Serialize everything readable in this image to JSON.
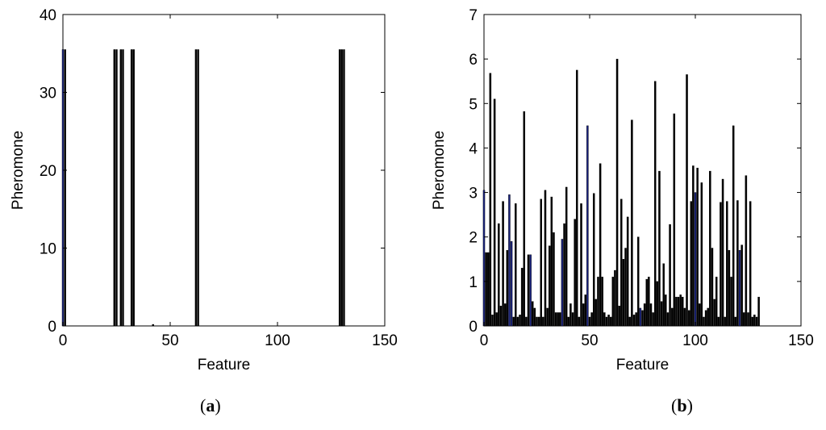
{
  "chart_data": [
    {
      "id": "a",
      "type": "bar",
      "xlabel": "Feature",
      "ylabel": "Pheromone",
      "xlim": [
        0,
        150
      ],
      "ylim": [
        0,
        40
      ],
      "xticks": [
        0,
        50,
        100,
        150
      ],
      "yticks": [
        0,
        10,
        20,
        30,
        40
      ],
      "caption": "a",
      "bars": [
        {
          "x": 0,
          "y": 35.5,
          "color": "#1a237e"
        },
        {
          "x": 1,
          "y": 35.5,
          "color": "#000000"
        },
        {
          "x": 24,
          "y": 35.5,
          "color": "#000000"
        },
        {
          "x": 25,
          "y": 35.5,
          "color": "#000000"
        },
        {
          "x": 27,
          "y": 35.5,
          "color": "#000000"
        },
        {
          "x": 28,
          "y": 35.5,
          "color": "#000000"
        },
        {
          "x": 32,
          "y": 35.5,
          "color": "#000000"
        },
        {
          "x": 33,
          "y": 35.5,
          "color": "#000000"
        },
        {
          "x": 42,
          "y": 0.2,
          "color": "#000000"
        },
        {
          "x": 62,
          "y": 35.5,
          "color": "#000000"
        },
        {
          "x": 63,
          "y": 35.5,
          "color": "#000000"
        },
        {
          "x": 129,
          "y": 35.5,
          "color": "#000000"
        },
        {
          "x": 130,
          "y": 35.5,
          "color": "#000000"
        },
        {
          "x": 131,
          "y": 35.5,
          "color": "#000000"
        }
      ]
    },
    {
      "id": "b",
      "type": "bar",
      "xlabel": "Feature",
      "ylabel": "Pheromone",
      "xlim": [
        0,
        150
      ],
      "ylim": [
        0,
        7
      ],
      "xticks": [
        0,
        50,
        100,
        150
      ],
      "yticks": [
        0,
        1,
        2,
        3,
        4,
        5,
        6,
        7
      ],
      "caption": "b",
      "values": [
        3.05,
        1.65,
        1.65,
        5.68,
        0.25,
        5.1,
        0.3,
        2.3,
        0.45,
        2.8,
        0.5,
        1.7,
        2.95,
        1.9,
        0.2,
        2.75,
        0.2,
        0.25,
        1.3,
        4.82,
        0.2,
        1.6,
        1.6,
        0.55,
        0.4,
        0.2,
        0.2,
        2.85,
        0.2,
        3.05,
        0.4,
        1.8,
        2.9,
        2.1,
        0.3,
        0.3,
        0.3,
        1.95,
        2.3,
        3.12,
        0.2,
        0.5,
        0.3,
        2.4,
        5.75,
        0.2,
        2.75,
        0.5,
        0.7,
        4.5,
        0.2,
        0.3,
        2.98,
        0.6,
        1.1,
        3.65,
        1.1,
        0.3,
        0.2,
        0.25,
        0.2,
        1.1,
        1.25,
        6.0,
        0.45,
        2.85,
        1.5,
        1.75,
        2.45,
        0.2,
        4.63,
        0.25,
        0.3,
        2.0,
        0.4,
        0.35,
        0.5,
        1.05,
        1.1,
        0.5,
        0.3,
        5.5,
        1.0,
        3.48,
        0.55,
        1.4,
        0.7,
        0.3,
        2.28,
        0.4,
        4.77,
        0.65,
        0.65,
        0.7,
        0.65,
        0.4,
        5.65,
        0.35,
        2.8,
        3.6,
        3.0,
        3.55,
        0.5,
        3.22,
        0.2,
        0.35,
        0.4,
        3.48,
        1.75,
        0.6,
        1.1,
        0.2,
        2.78,
        3.3,
        0.2,
        2.8,
        1.7,
        1.1,
        4.5,
        0.2,
        2.82,
        1.7,
        1.82,
        0.3,
        3.38,
        0.3,
        2.8,
        0.2,
        0.25,
        0.2,
        0.65
      ],
      "blue_indices": [
        0,
        12,
        13,
        22,
        37,
        49,
        74,
        100,
        121
      ]
    }
  ]
}
